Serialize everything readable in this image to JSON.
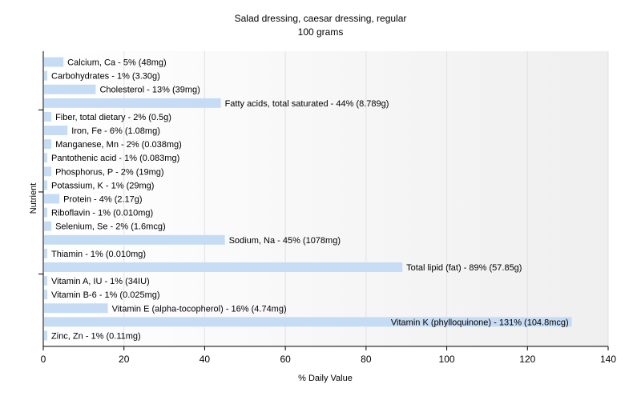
{
  "chart_data": {
    "type": "bar",
    "orientation": "horizontal",
    "title": "Salad dressing, caesar dressing, regular",
    "subtitle": "100 grams",
    "xlabel": "% Daily Value",
    "ylabel": "Nutrient",
    "xlim": [
      0,
      140
    ],
    "xticks": [
      0,
      20,
      40,
      60,
      80,
      100,
      120,
      140
    ],
    "grid": true,
    "bar_color": "#c6dcf5",
    "categories": [
      "Calcium, Ca",
      "Carbohydrates",
      "Cholesterol",
      "Fatty acids, total saturated",
      "Fiber, total dietary",
      "Iron, Fe",
      "Manganese, Mn",
      "Pantothenic acid",
      "Phosphorus, P",
      "Potassium, K",
      "Protein",
      "Riboflavin",
      "Selenium, Se",
      "Sodium, Na",
      "Thiamin",
      "Total lipid (fat)",
      "Vitamin A, IU",
      "Vitamin B-6",
      "Vitamin E (alpha-tocopherol)",
      "Vitamin K (phylloquinone)",
      "Zinc, Zn"
    ],
    "values": [
      5,
      1,
      13,
      44,
      2,
      6,
      2,
      1,
      2,
      1,
      4,
      1,
      2,
      45,
      1,
      89,
      1,
      1,
      16,
      131,
      1
    ],
    "labels": [
      "Calcium, Ca - 5% (48mg)",
      "Carbohydrates - 1% (3.30g)",
      "Cholesterol - 13% (39mg)",
      "Fatty acids, total saturated - 44% (8.789g)",
      "Fiber, total dietary - 2% (0.5g)",
      "Iron, Fe - 6% (1.08mg)",
      "Manganese, Mn - 2% (0.038mg)",
      "Pantothenic acid - 1% (0.083mg)",
      "Phosphorus, P - 2% (19mg)",
      "Potassium, K - 1% (29mg)",
      "Protein - 4% (2.17g)",
      "Riboflavin - 1% (0.010mg)",
      "Selenium, Se - 2% (1.6mcg)",
      "Sodium, Na - 45% (1078mg)",
      "Thiamin - 1% (0.010mg)",
      "Total lipid (fat) - 89% (57.85g)",
      "Vitamin A, IU - 1% (34IU)",
      "Vitamin B-6 - 1% (0.025mg)",
      "Vitamin E (alpha-tocopherol) - 16% (4.74mg)",
      "Vitamin K (phylloquinone) - 131% (104.8mcg)",
      "Zinc, Zn - 1% (0.11mg)"
    ]
  }
}
